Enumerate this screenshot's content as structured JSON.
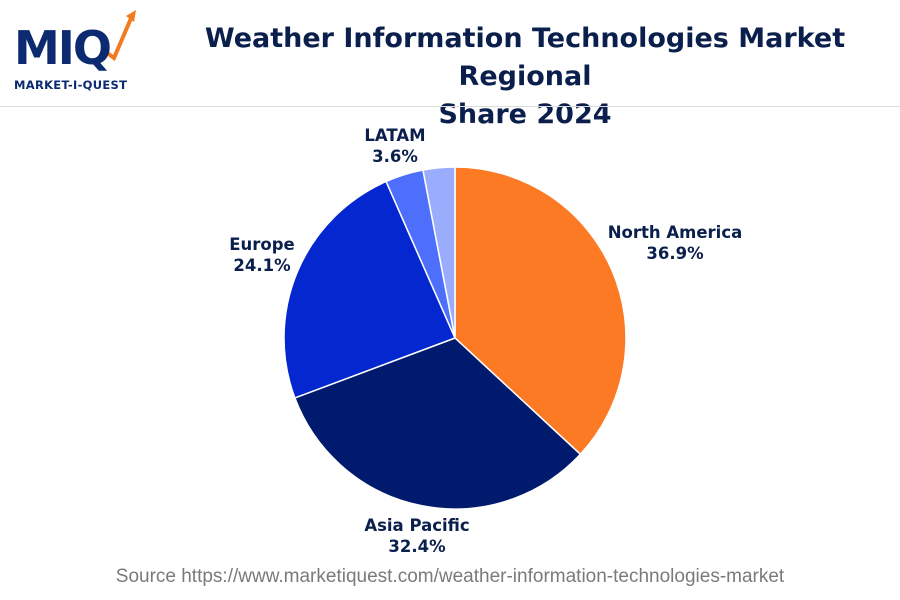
{
  "logo": {
    "mark": "MIQ",
    "subtitle": "MARKET-I-QUEST",
    "accent_color": "#f47a1f",
    "brand_color": "#0b2a6f"
  },
  "title_line1": "Weather Information Technologies Market Regional",
  "title_line2": "Share 2024",
  "source": "Source https://www.marketiquest.com/weather-information-technologies-market",
  "chart_data": {
    "type": "pie",
    "title": "Weather Information Technologies Market Regional Share 2024",
    "slices": [
      {
        "name": "North America",
        "value": 36.9,
        "label": "36.9%",
        "color": "#fd7a24"
      },
      {
        "name": "Asia Pacific",
        "value": 32.4,
        "label": "32.4%",
        "color": "#001a6e"
      },
      {
        "name": "Europe",
        "value": 24.1,
        "label": "24.1%",
        "color": "#0427cf"
      },
      {
        "name": "LATAM",
        "value": 3.6,
        "label": "3.6%",
        "color": "#4d6ffb"
      },
      {
        "name": "",
        "value": 3.0,
        "label": "",
        "color": "#9aadfd"
      }
    ],
    "start": "top",
    "direction": "clockwise"
  }
}
